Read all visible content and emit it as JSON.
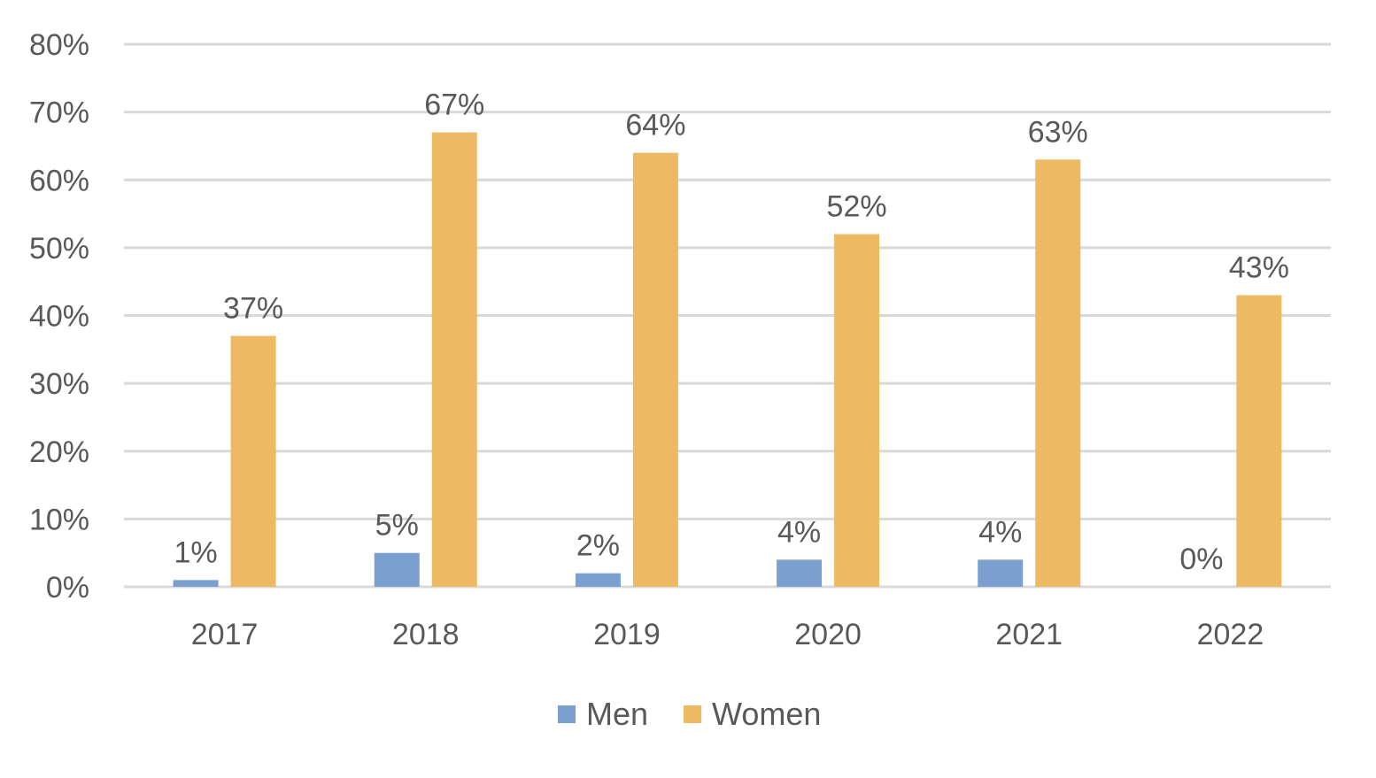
{
  "chart_data": {
    "type": "bar",
    "title": "",
    "xlabel": "",
    "ylabel": "",
    "categories": [
      "2017",
      "2018",
      "2019",
      "2020",
      "2021",
      "2022"
    ],
    "series": [
      {
        "name": "Men",
        "values": [
          1,
          5,
          2,
          4,
          4,
          0
        ],
        "labels": [
          "1%",
          "5%",
          "2%",
          "4%",
          "4%",
          "0%"
        ],
        "color": "#7BA0D0"
      },
      {
        "name": "Women",
        "values": [
          37,
          67,
          64,
          52,
          63,
          43
        ],
        "labels": [
          "37%",
          "67%",
          "64%",
          "52%",
          "63%",
          "43%"
        ],
        "color": "#EDBA63"
      }
    ],
    "ylim": [
      0,
      80
    ],
    "yticks": [
      0,
      10,
      20,
      30,
      40,
      50,
      60,
      70,
      80
    ],
    "ytick_labels": [
      "0%",
      "10%",
      "20%",
      "30%",
      "40%",
      "50%",
      "60%",
      "70%",
      "80%"
    ],
    "grid": true,
    "grid_color": "#D9D9D9",
    "text_color": "#595959",
    "legend_position": "bottom"
  }
}
